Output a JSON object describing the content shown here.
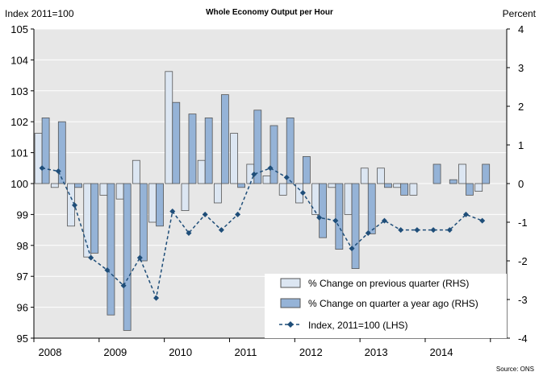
{
  "chart_data": {
    "type": "bar",
    "title": "Whole Economy Output per Hour",
    "left_axis_label": "Index 2011=100",
    "right_axis_label": "Percent",
    "source": "Source: ONS",
    "grid": "horizontal",
    "legend_placement": "bottom-right",
    "left_ylim": [
      95,
      105
    ],
    "left_ticks": [
      "95",
      "96",
      "97",
      "98",
      "99",
      "100",
      "101",
      "102",
      "103",
      "104",
      "105"
    ],
    "right_ylim": [
      -4,
      4
    ],
    "right_ticks": [
      "-4",
      "-3",
      "-2",
      "-1",
      "0",
      "1",
      "2",
      "3",
      "4"
    ],
    "year_labels": [
      "2008",
      "2009",
      "2010",
      "2011",
      "2012",
      "2013",
      "2014"
    ],
    "quarters": [
      "2008 Q1",
      "2008 Q2",
      "2008 Q3",
      "2008 Q4",
      "2009 Q1",
      "2009 Q2",
      "2009 Q3",
      "2009 Q4",
      "2010 Q1",
      "2010 Q2",
      "2010 Q3",
      "2010 Q4",
      "2011 Q1",
      "2011 Q2",
      "2011 Q3",
      "2011 Q4",
      "2012 Q1",
      "2012 Q2",
      "2012 Q3",
      "2012 Q4",
      "2013 Q1",
      "2013 Q2",
      "2013 Q3",
      "2013 Q4",
      "2014 Q1",
      "2014 Q2",
      "2014 Q3",
      "2014 Q4"
    ],
    "series": [
      {
        "name": "% Change on previous quarter (RHS)",
        "axis": "right",
        "kind": "bar",
        "color": "#dce6f2",
        "values": [
          1.3,
          -0.1,
          -1.1,
          -1.9,
          -0.3,
          -0.4,
          0.6,
          -1.0,
          2.9,
          -0.7,
          0.6,
          -0.5,
          1.3,
          0.5,
          0.2,
          -0.3,
          -0.5,
          -0.8,
          -0.1,
          -0.8,
          0.4,
          0.4,
          -0.1,
          -0.3,
          0.0,
          0.0,
          0.5,
          -0.2
        ]
      },
      {
        "name": "% Change on quarter a year ago (RHS)",
        "axis": "right",
        "kind": "bar",
        "color": "#95b3d7",
        "values": [
          1.7,
          1.6,
          -0.1,
          -1.8,
          -3.4,
          -3.8,
          -2.0,
          -1.1,
          2.1,
          1.8,
          1.7,
          2.3,
          -0.1,
          1.9,
          1.5,
          1.7,
          0.7,
          -1.4,
          -1.7,
          -2.2,
          -1.3,
          -0.1,
          -0.3,
          0.0,
          0.5,
          0.1,
          -0.3,
          0.5
        ]
      },
      {
        "name": "Index, 2011=100 (LHS)",
        "axis": "left",
        "kind": "line",
        "color": "#1f4e79",
        "values": [
          100.5,
          100.4,
          99.3,
          97.6,
          97.2,
          96.7,
          97.6,
          96.3,
          99.1,
          98.4,
          99.0,
          98.5,
          99.0,
          100.3,
          100.5,
          100.2,
          99.7,
          98.9,
          98.8,
          97.9,
          98.4,
          98.8,
          98.5,
          98.5,
          98.5,
          98.5,
          99.0,
          98.8
        ]
      }
    ]
  }
}
